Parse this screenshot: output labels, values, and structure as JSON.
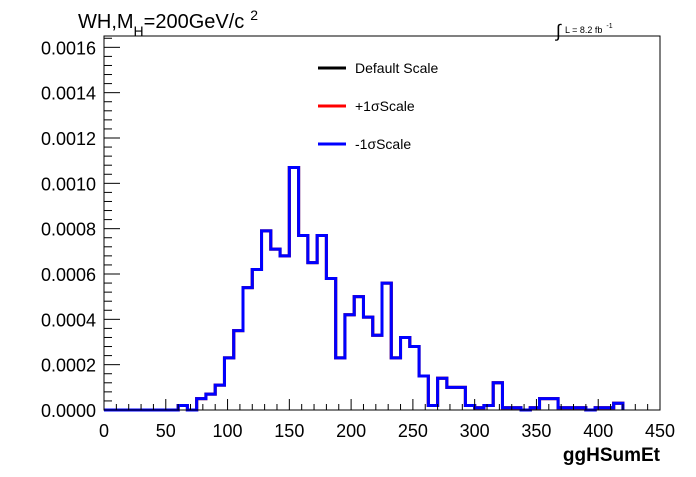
{
  "chart_data": {
    "type": "line",
    "title": {
      "prefix": "WH,M",
      "subscript": "H",
      "main": "=200GeV/c",
      "superscript": "2"
    },
    "luminosity": {
      "integral": "∫",
      "text": "L = 8.2 fb",
      "superscript": "-1"
    },
    "xlabel": "ggHSumEt",
    "ylabel": "",
    "xlim": [
      0,
      450
    ],
    "ylim": [
      0,
      0.00165
    ],
    "x_ticks": [
      {
        "value": 0,
        "label": "0"
      },
      {
        "value": 50,
        "label": "50"
      },
      {
        "value": 100,
        "label": "100"
      },
      {
        "value": 150,
        "label": "150"
      },
      {
        "value": 200,
        "label": "200"
      },
      {
        "value": 250,
        "label": "250"
      },
      {
        "value": 300,
        "label": "300"
      },
      {
        "value": 350,
        "label": "350"
      },
      {
        "value": 400,
        "label": "400"
      },
      {
        "value": 450,
        "label": "450"
      }
    ],
    "y_ticks": [
      {
        "value": 0,
        "label": "0.0000"
      },
      {
        "value": 0.0002,
        "label": "0.0002"
      },
      {
        "value": 0.0004,
        "label": "0.0004"
      },
      {
        "value": 0.0006,
        "label": "0.0006"
      },
      {
        "value": 0.0008,
        "label": "0.0008"
      },
      {
        "value": 0.001,
        "label": "0.0010"
      },
      {
        "value": 0.0012,
        "label": "0.0012"
      },
      {
        "value": 0.0014,
        "label": "0.0014"
      },
      {
        "value": 0.0016,
        "label": "0.0016"
      }
    ],
    "bin_width": 7.5,
    "grid": false,
    "legend_position": "top-center",
    "series": [
      {
        "name": "Default Scale",
        "color": "#000000",
        "values": [
          0,
          0,
          0,
          0,
          0,
          0,
          0,
          0,
          2e-05,
          0,
          5e-05,
          7e-05,
          0.00011,
          0.00023,
          0.00035,
          0.00054,
          0.00062,
          0.00079,
          0.00071,
          0.00068,
          0.00107,
          0.00077,
          0.00065,
          0.00077,
          0.00058,
          0.00023,
          0.00042,
          0.0005,
          0.00041,
          0.00033,
          0.00056,
          0.00023,
          0.00032,
          0.00028,
          0.00015,
          2e-05,
          0.00014,
          0.0001,
          0.0001,
          2e-05,
          1e-05,
          2e-05,
          0.00012,
          1e-05,
          1e-05,
          0.0,
          1e-05,
          5e-05,
          5e-05,
          1e-05,
          1e-05,
          1e-05,
          0.0,
          1e-05,
          1e-05,
          3e-05
        ]
      },
      {
        "name": "+1σScale",
        "color": "#ff0000",
        "values": [
          0,
          0,
          0,
          0,
          0,
          0,
          0,
          0,
          2e-05,
          0,
          5e-05,
          7e-05,
          0.00011,
          0.00023,
          0.00035,
          0.00054,
          0.00062,
          0.00079,
          0.00071,
          0.00068,
          0.00107,
          0.00077,
          0.00065,
          0.00077,
          0.00058,
          0.00023,
          0.00042,
          0.0005,
          0.00041,
          0.00033,
          0.00056,
          0.00023,
          0.00032,
          0.00028,
          0.00015,
          2e-05,
          0.00014,
          0.0001,
          0.0001,
          2e-05,
          1e-05,
          2e-05,
          0.00012,
          1e-05,
          1e-05,
          0.0,
          1e-05,
          5e-05,
          5e-05,
          1e-05,
          1e-05,
          1e-05,
          0.0,
          1e-05,
          1e-05,
          3e-05
        ]
      },
      {
        "name": "-1σScale",
        "color": "#0000ff",
        "values": [
          0,
          0,
          0,
          0,
          0,
          0,
          0,
          0,
          2e-05,
          0,
          5e-05,
          7e-05,
          0.00011,
          0.00023,
          0.00035,
          0.00054,
          0.00062,
          0.00079,
          0.00071,
          0.00068,
          0.00107,
          0.00077,
          0.00065,
          0.00077,
          0.00058,
          0.00023,
          0.00042,
          0.0005,
          0.00041,
          0.00033,
          0.00056,
          0.00023,
          0.00032,
          0.00028,
          0.00015,
          2e-05,
          0.00014,
          0.0001,
          0.0001,
          2e-05,
          1e-05,
          2e-05,
          0.00012,
          1e-05,
          1e-05,
          0.0,
          1e-05,
          5e-05,
          5e-05,
          1e-05,
          1e-05,
          1e-05,
          0.0,
          1e-05,
          1e-05,
          3e-05
        ]
      }
    ]
  }
}
